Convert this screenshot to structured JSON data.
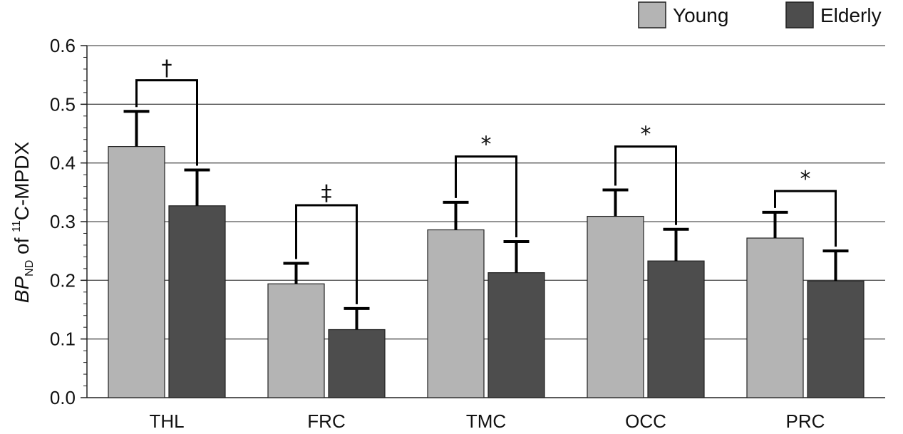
{
  "chart_data": {
    "type": "bar",
    "title": "",
    "xlabel": "",
    "ylabel": {
      "main": "BP",
      "subscript": "ND",
      "middle": " of ",
      "superscript": "11",
      "tail": "C-MPDX"
    },
    "ylim": [
      0,
      0.6
    ],
    "yticks": [
      "0.0",
      "0.1",
      "0.2",
      "0.3",
      "0.4",
      "0.5",
      "0.6"
    ],
    "grid": true,
    "legend_position": "top-right",
    "categories": [
      "THL",
      "FRC",
      "TMC",
      "OCC",
      "PRC"
    ],
    "series": [
      {
        "name": "Young",
        "color": "#b4b4b4",
        "values": [
          0.428,
          0.194,
          0.286,
          0.309,
          0.272
        ],
        "errors": [
          0.06,
          0.035,
          0.047,
          0.045,
          0.044
        ]
      },
      {
        "name": "Elderly",
        "color": "#4d4d4d",
        "values": [
          0.327,
          0.116,
          0.213,
          0.233,
          0.199
        ],
        "errors": [
          0.061,
          0.036,
          0.053,
          0.054,
          0.051
        ]
      }
    ],
    "significance": [
      {
        "category": "THL",
        "symbol": "†",
        "bracket_y": 0.541
      },
      {
        "category": "FRC",
        "symbol": "‡",
        "bracket_y": 0.328
      },
      {
        "category": "TMC",
        "symbol": "*",
        "bracket_y": 0.411
      },
      {
        "category": "OCC",
        "symbol": "*",
        "bracket_y": 0.428
      },
      {
        "category": "PRC",
        "symbol": "*",
        "bracket_y": 0.352
      }
    ]
  }
}
